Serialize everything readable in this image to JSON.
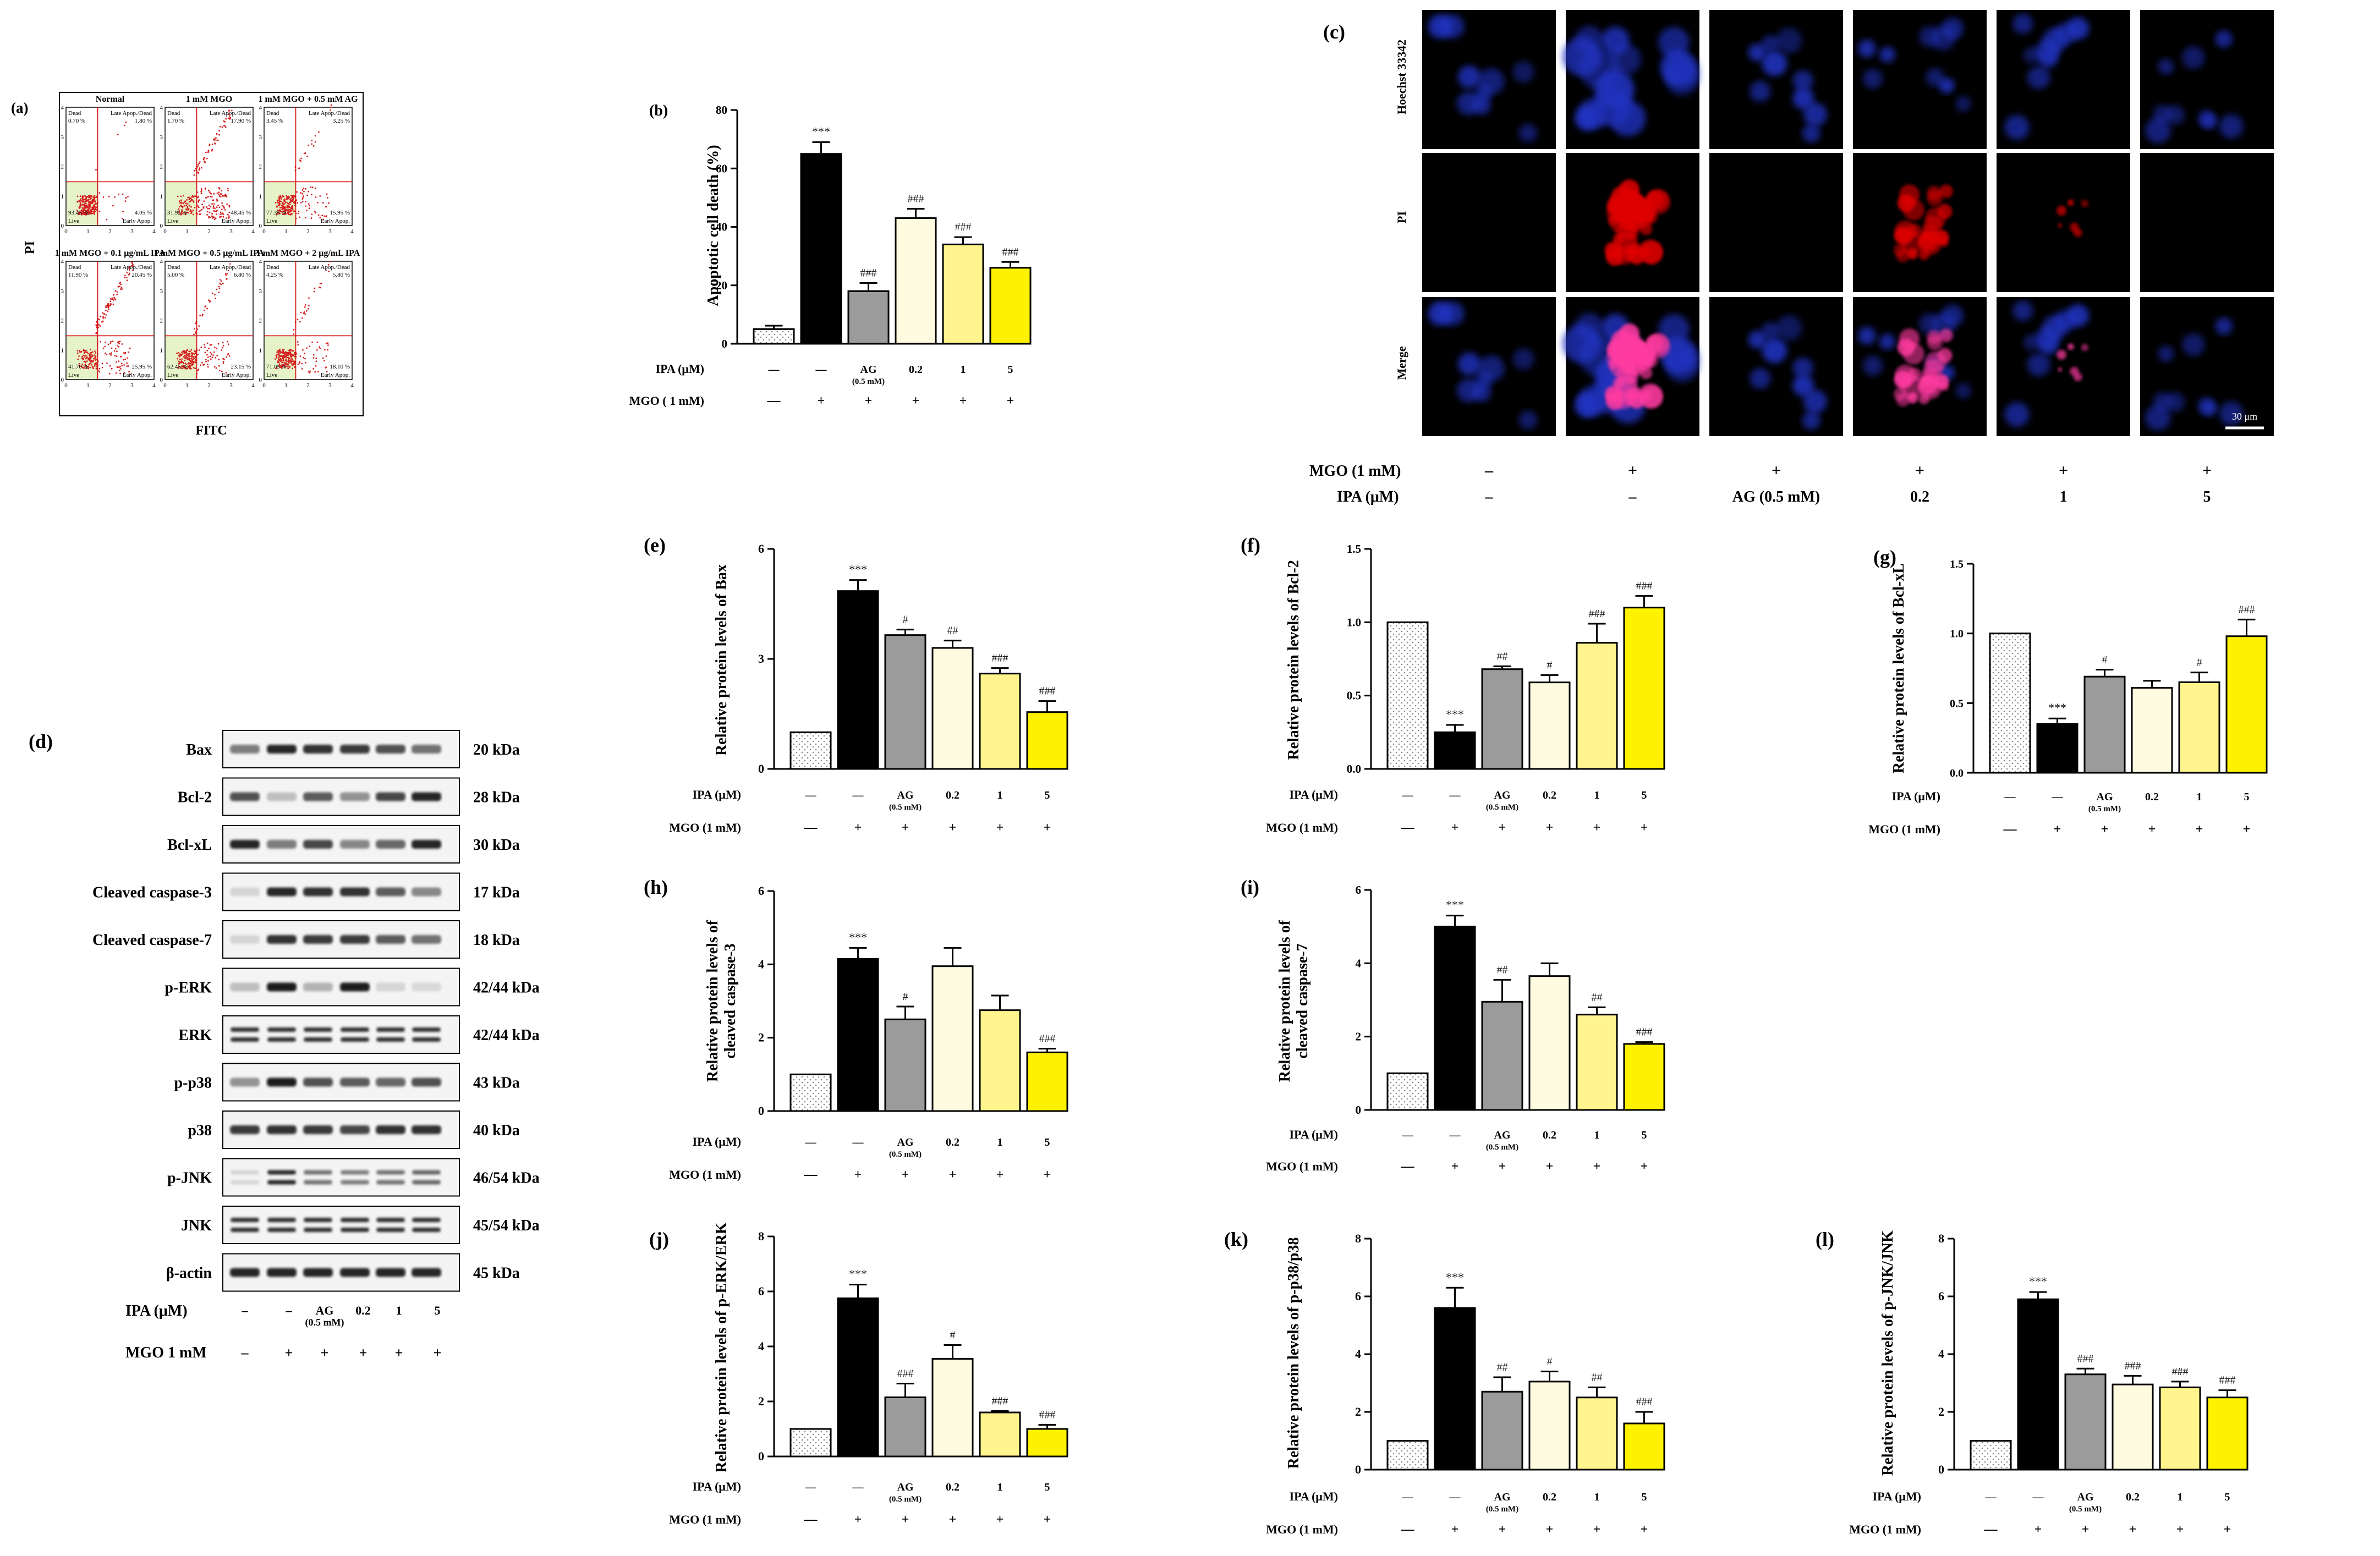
{
  "colors": {
    "normal": "#ffffff",
    "mgo": "#000000",
    "ag": "#9b9b9b",
    "ipa02": "#fffbe0",
    "ipa1": "#fff48d",
    "ipa5": "#fff200",
    "blue_nuclei": "#2436c8",
    "red_pi": "#e00000"
  },
  "panel_a": {
    "label": "(a)",
    "ylabel": "PI",
    "xlabel": "FITC",
    "plots": [
      {
        "title": "Normal",
        "q": [
          "Dead",
          "Late Apop./Dead",
          "Live",
          "Early Apop."
        ],
        "pct": [
          "0.70 %",
          "1.80 %",
          "93.45 %",
          "4.05 %"
        ]
      },
      {
        "title": "1 mM MGO",
        "q": [
          "Dead",
          "Late Apop./Dead",
          "Live",
          "Early Apop."
        ],
        "pct": [
          "1.70 %",
          "17.90 %",
          "31.95 %",
          "48.45 %"
        ]
      },
      {
        "title": "1 mM MGO + 0.5 mM AG",
        "q": [
          "Dead",
          "Late Apop./Dead",
          "Live",
          "Early Apop."
        ],
        "pct": [
          "3.45 %",
          "3.25 %",
          "77.35 %",
          "15.95 %"
        ]
      },
      {
        "title": "1 mM MGO + 0.1 μg/mL IPA",
        "q": [
          "Dead",
          "Late Apop./Dead",
          "Live",
          "Early Apop."
        ],
        "pct": [
          "11.90 %",
          "20.45 %",
          "41.70 %",
          "25.95 %"
        ]
      },
      {
        "title": "1 mM MGO + 0.5 μg/mL IPA",
        "q": [
          "Dead",
          "Late Apop./Dead",
          "Live",
          "Early Apop."
        ],
        "pct": [
          "5.00 %",
          "6.80 %",
          "62.45 %",
          "23.15 %"
        ]
      },
      {
        "title": "1 mM MGO + 2 μg/mL IPA",
        "q": [
          "Dead",
          "Late Apop./Dead",
          "Live",
          "Early Apop."
        ],
        "pct": [
          "4.25 %",
          "5.80 %",
          "71.05 %",
          "18.10 %"
        ]
      }
    ],
    "ticks": [
      "0",
      "1",
      "2",
      "3",
      "4"
    ]
  },
  "panel_c": {
    "label": "(c)",
    "rows": [
      "Hoechst 33342",
      "PI",
      "Merge"
    ],
    "scale": "30 μm",
    "mgo_label": "MGO (1 mM)",
    "ipa_label": "IPA (μM)",
    "mgo": [
      "–",
      "+",
      "+",
      "+",
      "+",
      "+"
    ],
    "ipa": [
      "–",
      "–",
      "AG (0.5 mM)",
      "0.2",
      "1",
      "5"
    ],
    "pi_intensity": [
      0,
      1,
      0,
      0.6,
      0.15,
      0
    ]
  },
  "panel_d": {
    "label": "(d)",
    "proteins": [
      "Bax",
      "Bcl-2",
      "Bcl-xL",
      "Cleaved caspase-3",
      "Cleaved caspase-7",
      "p-ERK",
      "ERK",
      "p-p38",
      "p38",
      "p-JNK",
      "JNK",
      "β-actin"
    ],
    "sizes": [
      "20 kDa",
      "28 kDa",
      "30 kDa",
      "17 kDa",
      "18 kDa",
      "42/44 kDa",
      "42/44 kDa",
      "43 kDa",
      "40 kDa",
      "46/54 kDa",
      "45/54 kDa",
      "45 kDa"
    ],
    "double": [
      false,
      false,
      false,
      false,
      false,
      false,
      true,
      false,
      false,
      true,
      true,
      false
    ],
    "intensity": [
      [
        0.5,
        0.9,
        0.85,
        0.8,
        0.7,
        0.55
      ],
      [
        0.7,
        0.2,
        0.65,
        0.4,
        0.75,
        0.9
      ],
      [
        0.9,
        0.5,
        0.75,
        0.45,
        0.6,
        0.9
      ],
      [
        0.1,
        0.9,
        0.85,
        0.85,
        0.65,
        0.45
      ],
      [
        0.1,
        0.85,
        0.8,
        0.8,
        0.65,
        0.55
      ],
      [
        0.2,
        0.95,
        0.25,
        0.95,
        0.1,
        0.08
      ],
      [
        0.85,
        0.85,
        0.85,
        0.85,
        0.85,
        0.85
      ],
      [
        0.4,
        0.95,
        0.7,
        0.65,
        0.6,
        0.7
      ],
      [
        0.8,
        0.85,
        0.8,
        0.75,
        0.85,
        0.85
      ],
      [
        0.1,
        0.9,
        0.55,
        0.5,
        0.55,
        0.6
      ],
      [
        0.85,
        0.85,
        0.85,
        0.85,
        0.85,
        0.85
      ],
      [
        0.9,
        0.9,
        0.9,
        0.9,
        0.9,
        0.9
      ]
    ],
    "ipa_label": "IPA (μM)",
    "mgo_label": "MGO 1 mM",
    "ipa": [
      "–",
      "–",
      "AG",
      "0.2",
      "1",
      "5"
    ],
    "ag_sub": "(0.5 mM)",
    "mgo": [
      "–",
      "+",
      "+",
      "+",
      "+",
      "+"
    ]
  },
  "chart_data": [
    {
      "id": "b",
      "type": "bar",
      "label": "(b)",
      "ylabel": "Apoptotic cell death (%)",
      "ylim": [
        0,
        80
      ],
      "yticks": [
        0,
        20,
        40,
        60,
        80
      ],
      "values": [
        5,
        65,
        18,
        43,
        34,
        26
      ],
      "errors": [
        1.2,
        4,
        2.8,
        3.2,
        2.5,
        2
      ],
      "sig": [
        "",
        "***",
        "###",
        "###",
        "###",
        "###"
      ],
      "ipa_label": "IPA (μM)",
      "mgo_label": "MGO ( 1 mM)",
      "ipa": [
        "—",
        "—",
        "AG",
        "0.2",
        "1",
        "5"
      ],
      "ag_sub": "(0.5 mM)",
      "mgo": [
        "—",
        "+",
        "+",
        "+",
        "+",
        "+"
      ]
    },
    {
      "id": "e",
      "type": "bar",
      "label": "(e)",
      "ylabel": "Relative protein levels of  Bax",
      "ylim": [
        0,
        6
      ],
      "yticks": [
        0,
        3,
        6
      ],
      "values": [
        1,
        4.85,
        3.65,
        3.3,
        2.6,
        1.55
      ],
      "errors": [
        0,
        0.3,
        0.15,
        0.2,
        0.15,
        0.3
      ],
      "sig": [
        "",
        "***",
        "#",
        "##",
        "###",
        "###"
      ],
      "ipa_label": "IPA (μM)",
      "mgo_label": "MGO (1 mM)",
      "ipa": [
        "—",
        "—",
        "AG",
        "0.2",
        "1",
        "5"
      ],
      "ag_sub": "(0.5 mM)",
      "mgo": [
        "—",
        "+",
        "+",
        "+",
        "+",
        "+"
      ]
    },
    {
      "id": "f",
      "type": "bar",
      "label": "(f)",
      "ylabel": "Relative protein levels of  Bcl-2",
      "ylim": [
        0,
        1.5
      ],
      "yticks": [
        0.0,
        0.5,
        1.0,
        1.5
      ],
      "values": [
        1,
        0.25,
        0.68,
        0.59,
        0.86,
        1.1
      ],
      "errors": [
        0,
        0.05,
        0.02,
        0.05,
        0.13,
        0.08
      ],
      "sig": [
        "",
        "***",
        "##",
        "#",
        "###",
        "###"
      ],
      "ipa_label": "IPA (μM)",
      "mgo_label": "MGO (1 mM)",
      "ipa": [
        "—",
        "—",
        "AG",
        "0.2",
        "1",
        "5"
      ],
      "ag_sub": "(0.5 mM)",
      "mgo": [
        "—",
        "+",
        "+",
        "+",
        "+",
        "+"
      ]
    },
    {
      "id": "g",
      "type": "bar",
      "label": "(g)",
      "ylabel": "Relative protein levels of  Bcl-xL",
      "ylim": [
        0,
        1.5
      ],
      "yticks": [
        0.0,
        0.5,
        1.0,
        1.5
      ],
      "values": [
        1,
        0.35,
        0.69,
        0.61,
        0.65,
        0.98
      ],
      "errors": [
        0,
        0.04,
        0.05,
        0.05,
        0.07,
        0.12
      ],
      "sig": [
        "",
        "***",
        "#",
        "",
        "#",
        "###"
      ],
      "ipa_label": "IPA (μM)",
      "mgo_label": "MGO (1 mM)",
      "ipa": [
        "—",
        "—",
        "AG",
        "0.2",
        "1",
        "5"
      ],
      "ag_sub": "(0.5 mM)",
      "mgo": [
        "—",
        "+",
        "+",
        "+",
        "+",
        "+"
      ]
    },
    {
      "id": "h",
      "type": "bar",
      "label": "(h)",
      "ylabel": "Relative protein levels of cleaved caspase-3",
      "ylim": [
        0,
        6
      ],
      "yticks": [
        0,
        2,
        4,
        6
      ],
      "values": [
        1,
        4.15,
        2.5,
        3.95,
        2.75,
        1.6
      ],
      "errors": [
        0,
        0.3,
        0.35,
        0.5,
        0.4,
        0.1
      ],
      "sig": [
        "",
        "***",
        "#",
        "",
        "",
        "###"
      ],
      "ipa_label": "IPA (μM)",
      "mgo_label": "MGO (1 mM)",
      "ipa": [
        "—",
        "—",
        "AG",
        "0.2",
        "1",
        "5"
      ],
      "ag_sub": "(0.5 mM)",
      "mgo": [
        "—",
        "+",
        "+",
        "+",
        "+",
        "+"
      ]
    },
    {
      "id": "i",
      "type": "bar",
      "label": "(i)",
      "ylabel": "Relative protein levels of cleaved caspase-7",
      "ylim": [
        0,
        6
      ],
      "yticks": [
        0,
        2,
        4,
        6
      ],
      "values": [
        1,
        5,
        2.95,
        3.65,
        2.6,
        1.8
      ],
      "errors": [
        0,
        0.3,
        0.6,
        0.35,
        0.2,
        0.05
      ],
      "sig": [
        "",
        "***",
        "##",
        "",
        "##",
        "###"
      ],
      "ipa_label": "IPA (μM)",
      "mgo_label": "MGO (1 mM)",
      "ipa": [
        "—",
        "—",
        "AG",
        "0.2",
        "1",
        "5"
      ],
      "ag_sub": "(0.5 mM)",
      "mgo": [
        "—",
        "+",
        "+",
        "+",
        "+",
        "+"
      ]
    },
    {
      "id": "j",
      "type": "bar",
      "label": "(j)",
      "ylabel": "Relative protein levels of p-ERK/ERK",
      "ylim": [
        0,
        8
      ],
      "yticks": [
        0,
        2,
        4,
        6,
        8
      ],
      "values": [
        1,
        5.75,
        2.15,
        3.55,
        1.6,
        1
      ],
      "errors": [
        0,
        0.5,
        0.5,
        0.5,
        0.05,
        0.15
      ],
      "sig": [
        "",
        "***",
        "###",
        "#",
        "###",
        "###"
      ],
      "ipa_label": "IPA (μM)",
      "mgo_label": "MGO (1 mM)",
      "ipa": [
        "—",
        "—",
        "AG",
        "0.2",
        "1",
        "5"
      ],
      "ag_sub": "(0.5 mM)",
      "mgo": [
        "—",
        "+",
        "+",
        "+",
        "+",
        "+"
      ]
    },
    {
      "id": "k",
      "type": "bar",
      "label": "(k)",
      "ylabel": "Relative protein levels of p-p38/p38",
      "ylim": [
        0,
        8
      ],
      "yticks": [
        0,
        2,
        4,
        6,
        8
      ],
      "values": [
        1,
        5.6,
        2.7,
        3.05,
        2.5,
        1.6
      ],
      "errors": [
        0,
        0.7,
        0.5,
        0.35,
        0.35,
        0.4
      ],
      "sig": [
        "",
        "***",
        "##",
        "#",
        "##",
        "###"
      ],
      "ipa_label": "IPA (μM)",
      "mgo_label": "MGO (1 mM)",
      "ipa": [
        "—",
        "—",
        "AG",
        "0.2",
        "1",
        "5"
      ],
      "ag_sub": "(0.5 mM)",
      "mgo": [
        "—",
        "+",
        "+",
        "+",
        "+",
        "+"
      ]
    },
    {
      "id": "l",
      "type": "bar",
      "label": "(l)",
      "ylabel": "Relative protein levels of p-JNK/JNK",
      "ylim": [
        0,
        8
      ],
      "yticks": [
        0,
        2,
        4,
        6,
        8
      ],
      "values": [
        1,
        5.9,
        3.3,
        2.95,
        2.85,
        2.5
      ],
      "errors": [
        0,
        0.25,
        0.2,
        0.3,
        0.2,
        0.25
      ],
      "sig": [
        "",
        "***",
        "###",
        "###",
        "###",
        "###"
      ],
      "ipa_label": "IPA (μM)",
      "mgo_label": "MGO (1 mM)",
      "ipa": [
        "—",
        "—",
        "AG",
        "0.2",
        "1",
        "5"
      ],
      "ag_sub": "(0.5 mM)",
      "mgo": [
        "—",
        "+",
        "+",
        "+",
        "+",
        "+"
      ]
    }
  ]
}
